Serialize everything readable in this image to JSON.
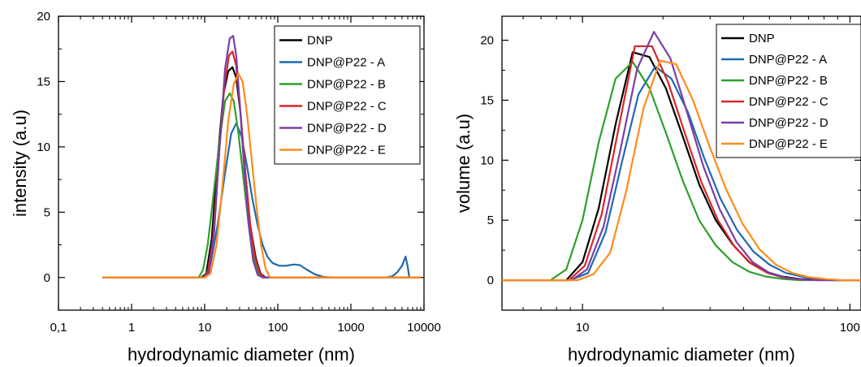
{
  "chart_data": [
    {
      "type": "line",
      "xscale": "log",
      "xlim": [
        0.1,
        10000
      ],
      "ylim": [
        -2.5,
        20
      ],
      "xticks": [
        0.1,
        1,
        10,
        100,
        1000,
        10000
      ],
      "xtick_labels": [
        "0,1",
        "1",
        "10",
        "100",
        "1000",
        "10000"
      ],
      "yticks": [
        0,
        5,
        10,
        15,
        20
      ],
      "ytick_labels": [
        "0",
        "5",
        "10",
        "15",
        "20"
      ],
      "xlabel": "hydrodynamic diameter (nm)",
      "ylabel": "intensity (a.u)",
      "legend_position": "top-right",
      "grid": false,
      "series": [
        {
          "name": "DNP",
          "color": "#000000",
          "points": [
            [
              0.4,
              0
            ],
            [
              9,
              0
            ],
            [
              10.5,
              0.3
            ],
            [
              12.5,
              3
            ],
            [
              15,
              9
            ],
            [
              18,
              14
            ],
            [
              21,
              15.8
            ],
            [
              24,
              16.1
            ],
            [
              27,
              15.3
            ],
            [
              31,
              12.5
            ],
            [
              36,
              8
            ],
            [
              42,
              4
            ],
            [
              50,
              1.5
            ],
            [
              58,
              0.3
            ],
            [
              68,
              0
            ],
            [
              9000,
              0
            ]
          ]
        },
        {
          "name": "DNP@P22 - A",
          "color": "#1f6ab0",
          "points": [
            [
              0.4,
              0
            ],
            [
              10,
              0
            ],
            [
              12,
              1
            ],
            [
              15,
              4
            ],
            [
              19,
              8
            ],
            [
              23,
              11
            ],
            [
              27,
              11.8
            ],
            [
              32,
              10.8
            ],
            [
              38,
              8.5
            ],
            [
              45,
              6
            ],
            [
              53,
              4
            ],
            [
              62,
              2.5
            ],
            [
              72,
              1.6
            ],
            [
              85,
              1.1
            ],
            [
              105,
              0.9
            ],
            [
              130,
              0.9
            ],
            [
              165,
              1.0
            ],
            [
              200,
              0.95
            ],
            [
              250,
              0.6
            ],
            [
              320,
              0.25
            ],
            [
              420,
              0.05
            ],
            [
              550,
              0
            ],
            [
              3000,
              0
            ],
            [
              3700,
              0.1
            ],
            [
              4300,
              0.4
            ],
            [
              5000,
              0.9
            ],
            [
              5600,
              1.6
            ],
            [
              6000,
              0.8
            ],
            [
              6300,
              0
            ],
            [
              9000,
              0
            ]
          ]
        },
        {
          "name": "DNP@P22 - B",
          "color": "#2ca02c",
          "points": [
            [
              0.4,
              0
            ],
            [
              8.3,
              0
            ],
            [
              9.5,
              0.6
            ],
            [
              11,
              2.5
            ],
            [
              13,
              6
            ],
            [
              16,
              10.5
            ],
            [
              19,
              13.5
            ],
            [
              22,
              14.1
            ],
            [
              25,
              13.5
            ],
            [
              29,
              11
            ],
            [
              34,
              7.5
            ],
            [
              40,
              4
            ],
            [
              47,
              1.5
            ],
            [
              55,
              0.3
            ],
            [
              65,
              0
            ],
            [
              9000,
              0
            ]
          ]
        },
        {
          "name": "DNP@P22 - C",
          "color": "#d62728",
          "points": [
            [
              0.4,
              0
            ],
            [
              9.5,
              0
            ],
            [
              11,
              0.4
            ],
            [
              13,
              3
            ],
            [
              15.5,
              9
            ],
            [
              18.5,
              14.5
            ],
            [
              21.5,
              17
            ],
            [
              24,
              17.3
            ],
            [
              27,
              16.2
            ],
            [
              31,
              12.5
            ],
            [
              36,
              8
            ],
            [
              42,
              4
            ],
            [
              49,
              1.5
            ],
            [
              57,
              0.3
            ],
            [
              66,
              0
            ],
            [
              9000,
              0
            ]
          ]
        },
        {
          "name": "DNP@P22 - D",
          "color": "#7b3fa6",
          "points": [
            [
              0.4,
              0
            ],
            [
              9.8,
              0
            ],
            [
              11.5,
              0.4
            ],
            [
              13.5,
              3.5
            ],
            [
              16,
              10
            ],
            [
              19,
              16
            ],
            [
              22,
              18.3
            ],
            [
              24.5,
              18.5
            ],
            [
              27,
              17
            ],
            [
              30.5,
              13
            ],
            [
              35,
              8
            ],
            [
              40,
              4
            ],
            [
              46,
              1.3
            ],
            [
              53,
              0.2
            ],
            [
              62,
              0
            ],
            [
              9000,
              0
            ]
          ]
        },
        {
          "name": "DNP@P22 - E",
          "color": "#ff8c1a",
          "points": [
            [
              0.4,
              0
            ],
            [
              10,
              0
            ],
            [
              12,
              0.3
            ],
            [
              14.5,
              2.5
            ],
            [
              17.5,
              7
            ],
            [
              21,
              12
            ],
            [
              25,
              14.8
            ],
            [
              29,
              15.6
            ],
            [
              33,
              15
            ],
            [
              38,
              12.5
            ],
            [
              44,
              9
            ],
            [
              51,
              5.5
            ],
            [
              59,
              2.5
            ],
            [
              68,
              0.7
            ],
            [
              78,
              0
            ],
            [
              9000,
              0
            ]
          ]
        }
      ]
    },
    {
      "type": "line",
      "xscale": "log",
      "xlim": [
        5,
        110
      ],
      "ylim": [
        -2.5,
        22
      ],
      "xticks": [
        10,
        100
      ],
      "xtick_labels": [
        "10",
        "100"
      ],
      "yticks": [
        0,
        5,
        10,
        15,
        20
      ],
      "ytick_labels": [
        "0",
        "5",
        "10",
        "15",
        "20"
      ],
      "xlabel": "hydrodynamic diameter (nm)",
      "ylabel": "volume (a.u)",
      "legend_position": "top-right",
      "grid": false,
      "series": [
        {
          "name": "DNP",
          "color": "#000000",
          "points": [
            [
              5,
              0
            ],
            [
              8.7,
              0
            ],
            [
              10,
              1.5
            ],
            [
              11.5,
              6
            ],
            [
              13.3,
              13
            ],
            [
              15.4,
              19
            ],
            [
              17.8,
              18.6
            ],
            [
              20.5,
              16
            ],
            [
              23.7,
              12
            ],
            [
              27.3,
              8
            ],
            [
              31.5,
              5
            ],
            [
              36.4,
              3
            ],
            [
              42,
              1.5
            ],
            [
              48.5,
              0.7
            ],
            [
              56,
              0.3
            ],
            [
              64.7,
              0.1
            ],
            [
              74.7,
              0.05
            ],
            [
              86,
              0
            ],
            [
              110,
              0
            ]
          ]
        },
        {
          "name": "DNP@P22 - A",
          "color": "#1f6ab0",
          "points": [
            [
              5,
              0
            ],
            [
              9,
              0
            ],
            [
              10.5,
              0.6
            ],
            [
              12.2,
              4
            ],
            [
              14.1,
              10
            ],
            [
              16.2,
              15.5
            ],
            [
              18.7,
              17.8
            ],
            [
              21.5,
              16.8
            ],
            [
              24.8,
              14
            ],
            [
              28.5,
              10.2
            ],
            [
              32.8,
              6.8
            ],
            [
              37.8,
              4.2
            ],
            [
              43.5,
              2.4
            ],
            [
              50,
              1.3
            ],
            [
              57.6,
              0.6
            ],
            [
              66.3,
              0.3
            ],
            [
              76.3,
              0.1
            ],
            [
              88,
              0
            ],
            [
              110,
              0
            ]
          ]
        },
        {
          "name": "DNP@P22 - B",
          "color": "#2ca02c",
          "points": [
            [
              5,
              0
            ],
            [
              7.6,
              0
            ],
            [
              8.7,
              0.9
            ],
            [
              10,
              5
            ],
            [
              11.5,
              11.5
            ],
            [
              13.3,
              16.8
            ],
            [
              15.4,
              18.2
            ],
            [
              17.8,
              16
            ],
            [
              20.5,
              12.3
            ],
            [
              23.7,
              8.3
            ],
            [
              27.3,
              5
            ],
            [
              31.5,
              2.9
            ],
            [
              36.4,
              1.5
            ],
            [
              42,
              0.7
            ],
            [
              48.5,
              0.3
            ],
            [
              56,
              0.1
            ],
            [
              64.7,
              0
            ],
            [
              110,
              0
            ]
          ]
        },
        {
          "name": "DNP@P22 - C",
          "color": "#d62728",
          "points": [
            [
              5,
              0
            ],
            [
              8.9,
              0
            ],
            [
              10.2,
              1.2
            ],
            [
              11.8,
              5.5
            ],
            [
              13.6,
              12.5
            ],
            [
              15.7,
              19.5
            ],
            [
              18.2,
              19.5
            ],
            [
              20.9,
              16.5
            ],
            [
              24.1,
              12.3
            ],
            [
              27.8,
              8.2
            ],
            [
              32.1,
              5
            ],
            [
              37,
              2.8
            ],
            [
              42.6,
              1.4
            ],
            [
              49.2,
              0.6
            ],
            [
              56.7,
              0.2
            ],
            [
              65.4,
              0.05
            ],
            [
              75,
              0
            ],
            [
              110,
              0
            ]
          ]
        },
        {
          "name": "DNP@P22 - D",
          "color": "#7b3fa6",
          "points": [
            [
              5,
              0
            ],
            [
              9.1,
              0
            ],
            [
              10.4,
              0.9
            ],
            [
              12,
              4.5
            ],
            [
              13.9,
              11
            ],
            [
              16,
              17.6
            ],
            [
              18.5,
              20.7
            ],
            [
              21.3,
              18.5
            ],
            [
              24.6,
              14
            ],
            [
              28.3,
              9.5
            ],
            [
              32.6,
              5.9
            ],
            [
              37.6,
              3.2
            ],
            [
              43.3,
              1.5
            ],
            [
              50,
              0.6
            ],
            [
              57.6,
              0.2
            ],
            [
              66.4,
              0.05
            ],
            [
              76,
              0
            ],
            [
              110,
              0
            ]
          ]
        },
        {
          "name": "DNP@P22 - E",
          "color": "#ff8c1a",
          "points": [
            [
              5,
              0
            ],
            [
              9.6,
              0
            ],
            [
              11,
              0.5
            ],
            [
              12.7,
              2.3
            ],
            [
              14.6,
              7.5
            ],
            [
              16.9,
              14.3
            ],
            [
              19.5,
              18.3
            ],
            [
              22.4,
              18
            ],
            [
              25.9,
              15
            ],
            [
              29.8,
              11.2
            ],
            [
              34.4,
              7.6
            ],
            [
              39.7,
              4.7
            ],
            [
              45.8,
              2.6
            ],
            [
              52.8,
              1.3
            ],
            [
              60.9,
              0.6
            ],
            [
              70.2,
              0.25
            ],
            [
              81,
              0.1
            ],
            [
              93.4,
              0
            ],
            [
              110,
              0
            ]
          ]
        }
      ]
    }
  ]
}
